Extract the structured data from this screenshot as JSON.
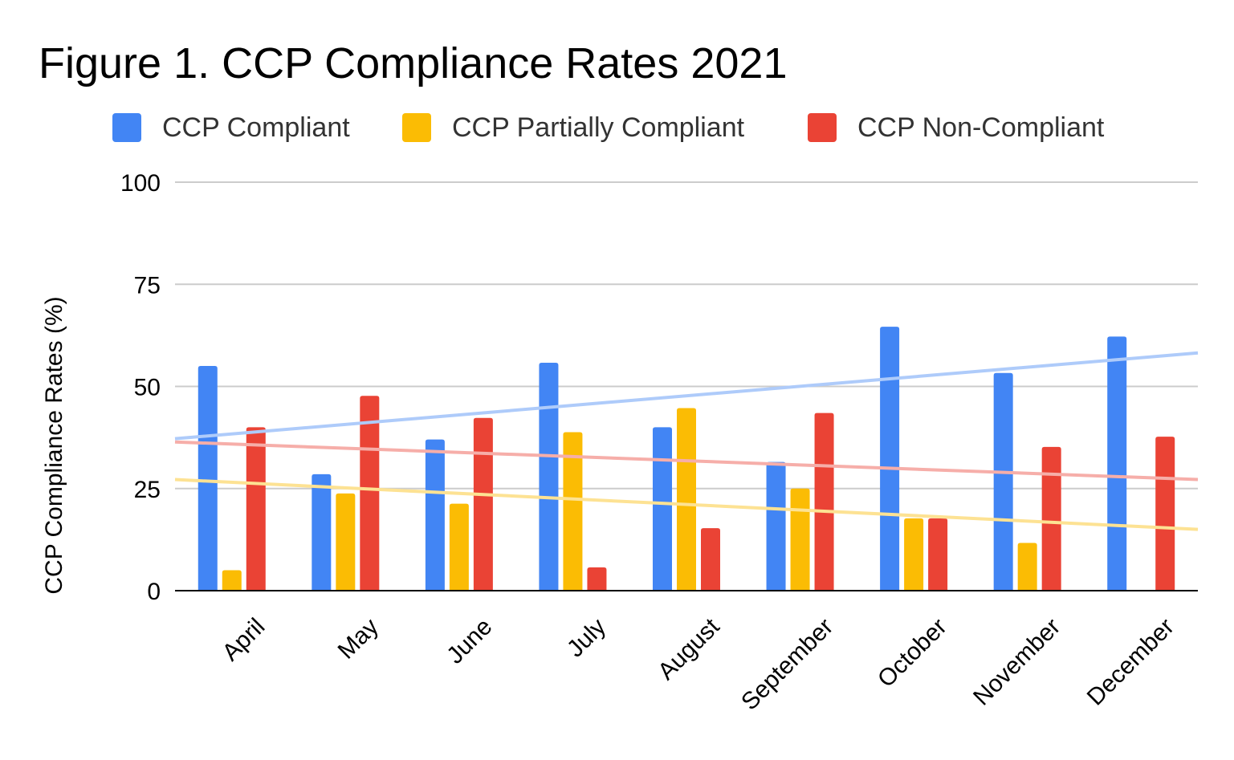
{
  "chart_data": {
    "type": "bar",
    "title": "Figure 1. CCP Compliance Rates 2021",
    "xlabel": "",
    "ylabel": "CCP Compliance Rates (%)",
    "ylim": [
      0,
      100
    ],
    "yticks": [
      "0",
      "25",
      "50",
      "75",
      "100"
    ],
    "grid": true,
    "legend_position": "top",
    "categories": [
      "April",
      "May",
      "June",
      "July",
      "August",
      "September",
      "October",
      "November",
      "December"
    ],
    "series": [
      {
        "name": "CCP Compliant",
        "color": "#4285F4",
        "values": [
          55,
          28.5,
          37,
          55.8,
          40,
          31.5,
          64.6,
          53.3,
          62.2
        ]
      },
      {
        "name": "CCP Partially Compliant",
        "color": "#FBBC04",
        "values": [
          5,
          23.8,
          21.3,
          38.8,
          44.7,
          25,
          17.7,
          11.7,
          0
        ]
      },
      {
        "name": "CCP Non-Compliant",
        "color": "#EA4335",
        "values": [
          40,
          47.7,
          42.3,
          5.7,
          15.3,
          43.5,
          17.7,
          35.2,
          37.7
        ]
      }
    ],
    "trendlines": [
      {
        "series": "CCP Compliant",
        "color": "#AECBFA",
        "start": 37.2,
        "end": 58.2
      },
      {
        "series": "CCP Partially Compliant",
        "color": "#FDE293",
        "start": 27.2,
        "end": 15
      },
      {
        "series": "CCP Non-Compliant",
        "color": "#F6AEA9",
        "start": 36.4,
        "end": 27.2
      }
    ]
  }
}
